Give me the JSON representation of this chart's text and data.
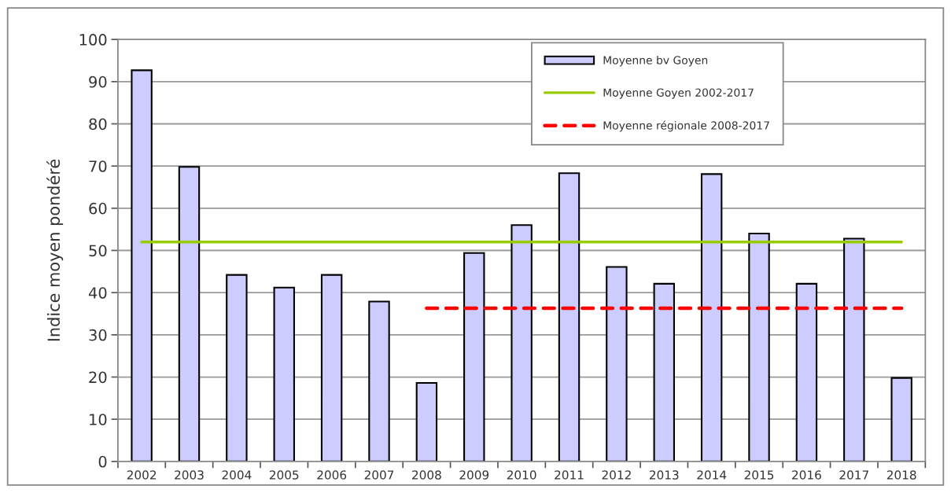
{
  "chart_data": {
    "type": "bar",
    "ylabel": "Indice moyen pondéré",
    "categories": [
      "2002",
      "2003",
      "2004",
      "2005",
      "2006",
      "2007",
      "2008",
      "2009",
      "2010",
      "2011",
      "2012",
      "2013",
      "2014",
      "2015",
      "2016",
      "2017",
      "2018"
    ],
    "series": [
      {
        "name": "Moyenne bv Goyen",
        "color": "#ccccff",
        "values": [
          92.7,
          69.8,
          44.2,
          41.2,
          44.2,
          37.9,
          18.6,
          49.4,
          56.0,
          68.3,
          46.1,
          42.1,
          68.1,
          54.0,
          42.1,
          52.8,
          19.8
        ]
      },
      {
        "name": "Moyenne Goyen 2002-2017",
        "type": "line",
        "color": "#99cc00",
        "values": [
          52,
          52,
          52,
          52,
          52,
          52,
          52,
          52,
          52,
          52,
          52,
          52,
          52,
          52,
          52,
          52,
          52
        ]
      },
      {
        "name": "Moyenne régionale 2008-2017",
        "type": "line",
        "color": "#ff0000",
        "line_style": "dashed",
        "values": [
          null,
          null,
          null,
          null,
          null,
          null,
          36.3,
          36.3,
          36.3,
          36.3,
          36.3,
          36.3,
          36.3,
          36.3,
          36.3,
          36.3,
          36.3
        ]
      }
    ],
    "ylim": [
      0,
      100
    ],
    "yticks": [
      0,
      10,
      20,
      30,
      40,
      50,
      60,
      70,
      80,
      90,
      100
    ],
    "grid": "y",
    "legend": "top right"
  }
}
